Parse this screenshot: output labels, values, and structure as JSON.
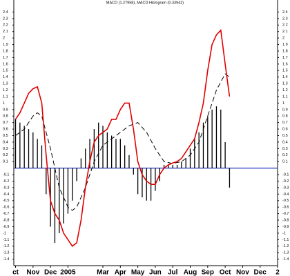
{
  "chart_data": {
    "type": "line",
    "title": "MACD (1.27958), MACD Histogram (0.33942)",
    "xlim": [
      -0.1,
      15.0
    ],
    "xticks": [
      {
        "value": 0,
        "label": "ct"
      },
      {
        "value": 1,
        "label": "Nov"
      },
      {
        "value": 2,
        "label": "Dec"
      },
      {
        "value": 3,
        "label": "2005"
      },
      {
        "value": 5,
        "label": "Mar"
      },
      {
        "value": 6,
        "label": "Apr"
      },
      {
        "value": 7,
        "label": "May"
      },
      {
        "value": 8,
        "label": "Jun"
      },
      {
        "value": 9,
        "label": "Jul"
      },
      {
        "value": 10,
        "label": "Aug"
      },
      {
        "value": 11,
        "label": "Sep"
      },
      {
        "value": 12,
        "label": "Oct"
      },
      {
        "value": 13,
        "label": "Nov"
      },
      {
        "value": 14,
        "label": "Dec"
      },
      {
        "value": 15,
        "label": "2"
      }
    ],
    "ylim": [
      -1.5,
      2.5
    ],
    "yticks": [
      2.4,
      2.3,
      2.2,
      2.1,
      2,
      1.9,
      1.8,
      1.7,
      1.6,
      1.5,
      1.4,
      1.3,
      1.2,
      1.1,
      1,
      0.9,
      0.8,
      0.7,
      0.6,
      0.5,
      0.4,
      0.3,
      0.2,
      0.1,
      -0.1,
      -0.2,
      -0.3,
      -0.4,
      -0.5,
      -0.6,
      -0.7,
      -0.8,
      -0.9,
      -1,
      -1.1,
      -1.2,
      -1.3,
      -1.4
    ],
    "series": [
      {
        "style": "histogram",
        "color": "#000000",
        "x": [
          0,
          0.25,
          0.5,
          0.75,
          1,
          1.25,
          1.5,
          1.75,
          2,
          2.25,
          2.5,
          2.75,
          3,
          3.25,
          3.5,
          3.75,
          4,
          4.25,
          4.5,
          4.75,
          5,
          5.25,
          5.5,
          5.75,
          6,
          6.25,
          6.5,
          6.75,
          7,
          7.25,
          7.5,
          7.75,
          8,
          8.25,
          8.5,
          8.75,
          9,
          9.25,
          9.5,
          9.75,
          10,
          10.25,
          10.5,
          10.75,
          11,
          11.25,
          11.5,
          11.75,
          12,
          12.25
        ],
        "values": [
          0.75,
          0.7,
          0.65,
          0.6,
          0.55,
          0.45,
          0.35,
          -0.4,
          -0.9,
          -1.15,
          -1.0,
          -0.85,
          -0.7,
          -0.5,
          -0.2,
          0.15,
          0.3,
          0.45,
          0.6,
          0.7,
          0.65,
          0.55,
          0.5,
          0.45,
          0.45,
          0.35,
          0.2,
          -0.1,
          -0.4,
          -0.45,
          -0.5,
          -0.5,
          -0.35,
          -0.2,
          0.05,
          0.05,
          0.05,
          0.05,
          0.1,
          0.15,
          0.3,
          0.45,
          0.55,
          0.7,
          0.8,
          0.9,
          0.95,
          0.9,
          0.4,
          -0.3
        ]
      },
      {
        "style": "dashed",
        "color": "#000000",
        "x": [
          0,
          0.5,
          1,
          1.25,
          1.5,
          2,
          2.5,
          3,
          3.25,
          3.5,
          4,
          4.5,
          5,
          5.5,
          6,
          6.5,
          7,
          7.5,
          8,
          8.5,
          9,
          9.5,
          10,
          10.5,
          11,
          11.5,
          12,
          12.25
        ],
        "values": [
          0.5,
          0.6,
          0.8,
          0.85,
          0.8,
          0.3,
          -0.3,
          -0.6,
          -0.65,
          -0.6,
          -0.3,
          0.1,
          0.35,
          0.45,
          0.55,
          0.65,
          0.7,
          0.55,
          0.3,
          0.1,
          0.07,
          0.1,
          0.2,
          0.4,
          0.8,
          1.2,
          1.45,
          1.4
        ]
      },
      {
        "style": "solid",
        "color": "#e00000",
        "x": [
          0,
          0.25,
          0.5,
          0.75,
          1,
          1.25,
          1.5,
          1.75,
          2,
          2.25,
          2.5,
          2.75,
          3,
          3.25,
          3.5,
          3.75,
          4,
          4.25,
          4.5,
          4.75,
          5,
          5.25,
          5.5,
          5.75,
          6,
          6.25,
          6.5,
          6.75,
          7,
          7.25,
          7.5,
          7.75,
          8,
          8.25,
          8.5,
          8.75,
          9,
          9.25,
          9.5,
          9.75,
          10,
          10.25,
          10.5,
          10.75,
          11,
          11.25,
          11.5,
          11.75,
          12,
          12.25
        ],
        "values": [
          0.75,
          0.85,
          1.0,
          1.15,
          1.22,
          1.25,
          1.0,
          0.2,
          -0.5,
          -0.7,
          -0.8,
          -1.0,
          -1.1,
          -1.2,
          -1.15,
          -0.8,
          -0.3,
          0.1,
          0.4,
          0.5,
          0.55,
          0.6,
          0.75,
          0.75,
          0.9,
          1.0,
          1.0,
          0.6,
          0.1,
          -0.1,
          -0.2,
          -0.25,
          -0.25,
          -0.1,
          0.0,
          0.05,
          0.08,
          0.1,
          0.15,
          0.25,
          0.35,
          0.45,
          0.7,
          1.0,
          1.5,
          1.9,
          2.05,
          2.12,
          1.6,
          1.1
        ]
      }
    ]
  }
}
